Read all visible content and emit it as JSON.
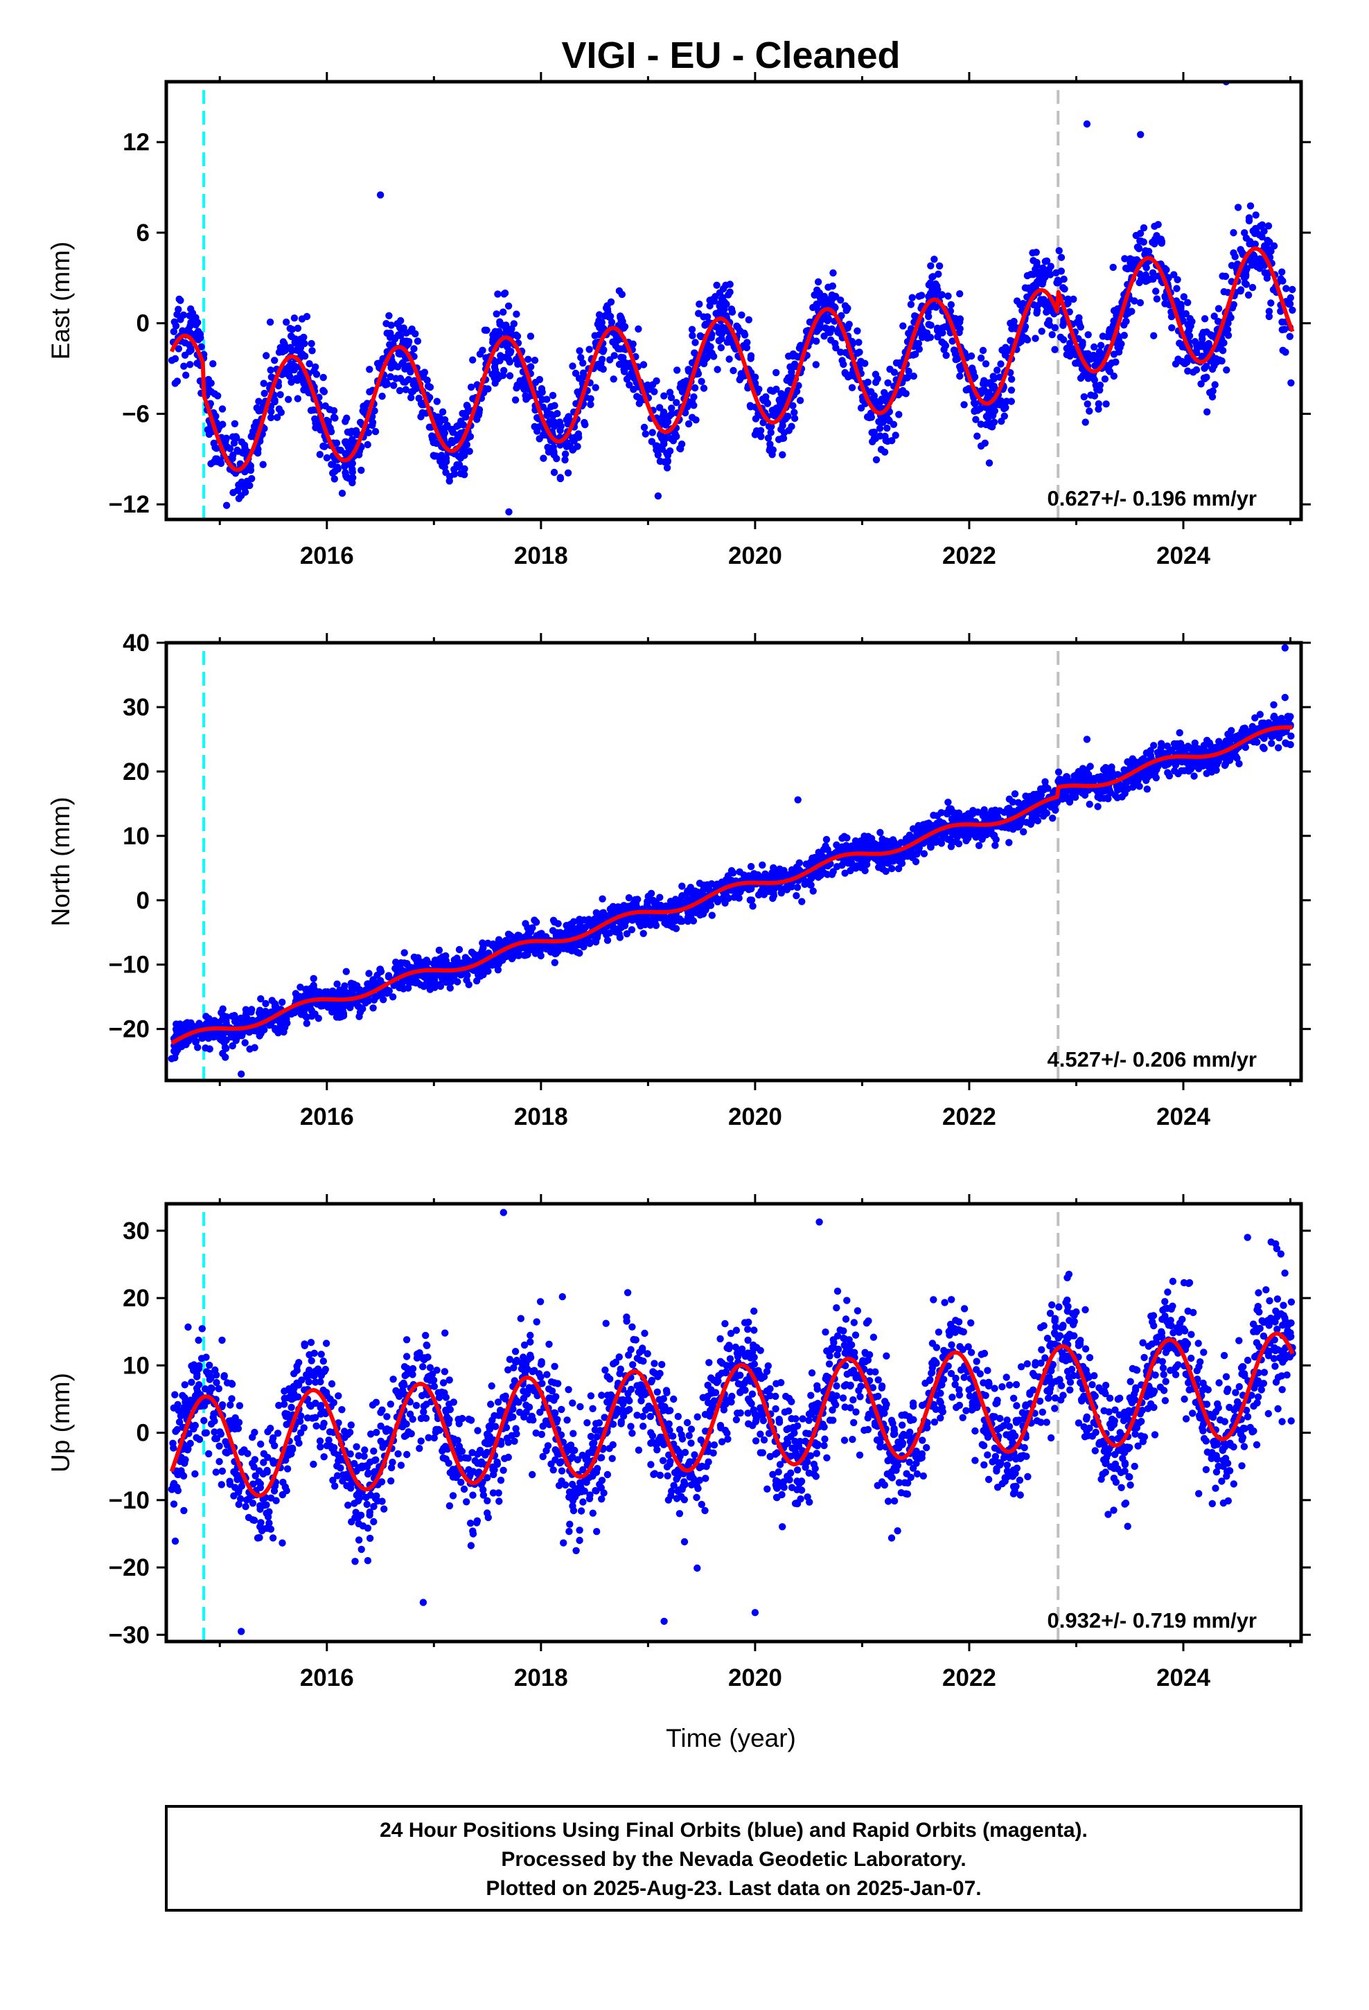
{
  "title": "VIGI  - EU - Cleaned",
  "xlabel": "Time (year)",
  "footer": {
    "line1": "24 Hour Positions Using Final Orbits (blue) and Rapid Orbits (magenta).",
    "line2": "Processed by the Nevada Geodetic Laboratory.",
    "line3": "Plotted on 2025-Aug-23. Last data on 2025-Jan-07."
  },
  "colors": {
    "points": "#0000ff",
    "model": "#ff0000",
    "equipment_change": "#00ffff",
    "other_event": "#c0c0c0",
    "frame": "#000000"
  },
  "chart_data": [
    {
      "type": "scatter",
      "component": "East",
      "ylabel": "East (mm)",
      "xlim": [
        2014.5,
        2025.1
      ],
      "ylim": [
        -13,
        16
      ],
      "xticks": [
        2016,
        2018,
        2020,
        2022,
        2024
      ],
      "yticks": [
        -12,
        -6,
        0,
        6,
        12
      ],
      "rate_label": "0.627+/- 0.196 mm/yr",
      "event_lines": [
        {
          "x": 2014.85,
          "color": "#00ffff",
          "style": "dashed"
        },
        {
          "x": 2022.83,
          "color": "#c0c0c0",
          "style": "dashed"
        }
      ],
      "model": {
        "mean": -4.5,
        "rate": 0.627,
        "amp": 3.6,
        "phase": 2015.42,
        "offsets": [
          {
            "x": 2014.85,
            "dy": -2.0
          },
          {
            "x": 2022.83,
            "dy": 1.5
          }
        ]
      },
      "series": [
        {
          "name": "Final Orbits",
          "x_range": [
            2014.55,
            2025.02
          ],
          "scatter": 1.3,
          "outliers": [
            [
              2017.7,
              -12.5
            ],
            [
              2023.1,
              13.2
            ],
            [
              2024.4,
              16.0
            ],
            [
              2016.5,
              8.5
            ],
            [
              2023.6,
              12.5
            ]
          ]
        }
      ]
    },
    {
      "type": "scatter",
      "component": "North",
      "ylabel": "North (mm)",
      "xlim": [
        2014.5,
        2025.1
      ],
      "ylim": [
        -28,
        40
      ],
      "xticks": [
        2016,
        2018,
        2020,
        2022,
        2024
      ],
      "yticks": [
        -20,
        -10,
        0,
        10,
        20,
        30,
        40
      ],
      "rate_label": "4.527+/- 0.206 mm/yr",
      "event_lines": [
        {
          "x": 2014.85,
          "color": "#00ffff",
          "style": "dashed"
        },
        {
          "x": 2022.83,
          "color": "#c0c0c0",
          "style": "dashed"
        }
      ],
      "model": {
        "mean": -22.2,
        "rate": 4.527,
        "amp": 0.8,
        "phase": 2015.55,
        "offsets": [
          {
            "x": 2022.83,
            "dy": 1.5
          }
        ]
      },
      "series": [
        {
          "name": "Final Orbits",
          "x_range": [
            2014.55,
            2025.02
          ],
          "scatter": 1.3,
          "outliers": [
            [
              2024.95,
              39.2
            ],
            [
              2020.4,
              15.6
            ],
            [
              2024.95,
              31.5
            ],
            [
              2015.2,
              -27.0
            ],
            [
              2023.1,
              25.0
            ]
          ]
        }
      ]
    },
    {
      "type": "scatter",
      "component": "Up",
      "ylabel": "Up (mm)",
      "xlim": [
        2014.5,
        2025.1
      ],
      "ylim": [
        -31,
        34
      ],
      "xticks": [
        2016,
        2018,
        2020,
        2022,
        2024
      ],
      "yticks": [
        -30,
        -20,
        -10,
        0,
        10,
        20,
        30
      ],
      "rate_label": "0.932+/- 0.719 mm/yr",
      "event_lines": [
        {
          "x": 2014.85,
          "color": "#00ffff",
          "style": "dashed"
        },
        {
          "x": 2022.83,
          "color": "#c0c0c0",
          "style": "dashed"
        }
      ],
      "model": {
        "mean": -2.5,
        "rate": 0.932,
        "amp": 7.6,
        "phase": 2014.62,
        "offsets": []
      },
      "series": [
        {
          "name": "Final Orbits",
          "x_range": [
            2014.55,
            2025.02
          ],
          "scatter": 4.5,
          "outliers": [
            [
              2017.65,
              32.7
            ],
            [
              2020.6,
              31.3
            ],
            [
              2015.2,
              -29.5
            ],
            [
              2019.15,
              -28.0
            ],
            [
              2020.0,
              -26.7
            ],
            [
              2024.6,
              29.0
            ],
            [
              2016.9,
              -25.2
            ],
            [
              2018.2,
              20.2
            ]
          ]
        }
      ]
    }
  ]
}
